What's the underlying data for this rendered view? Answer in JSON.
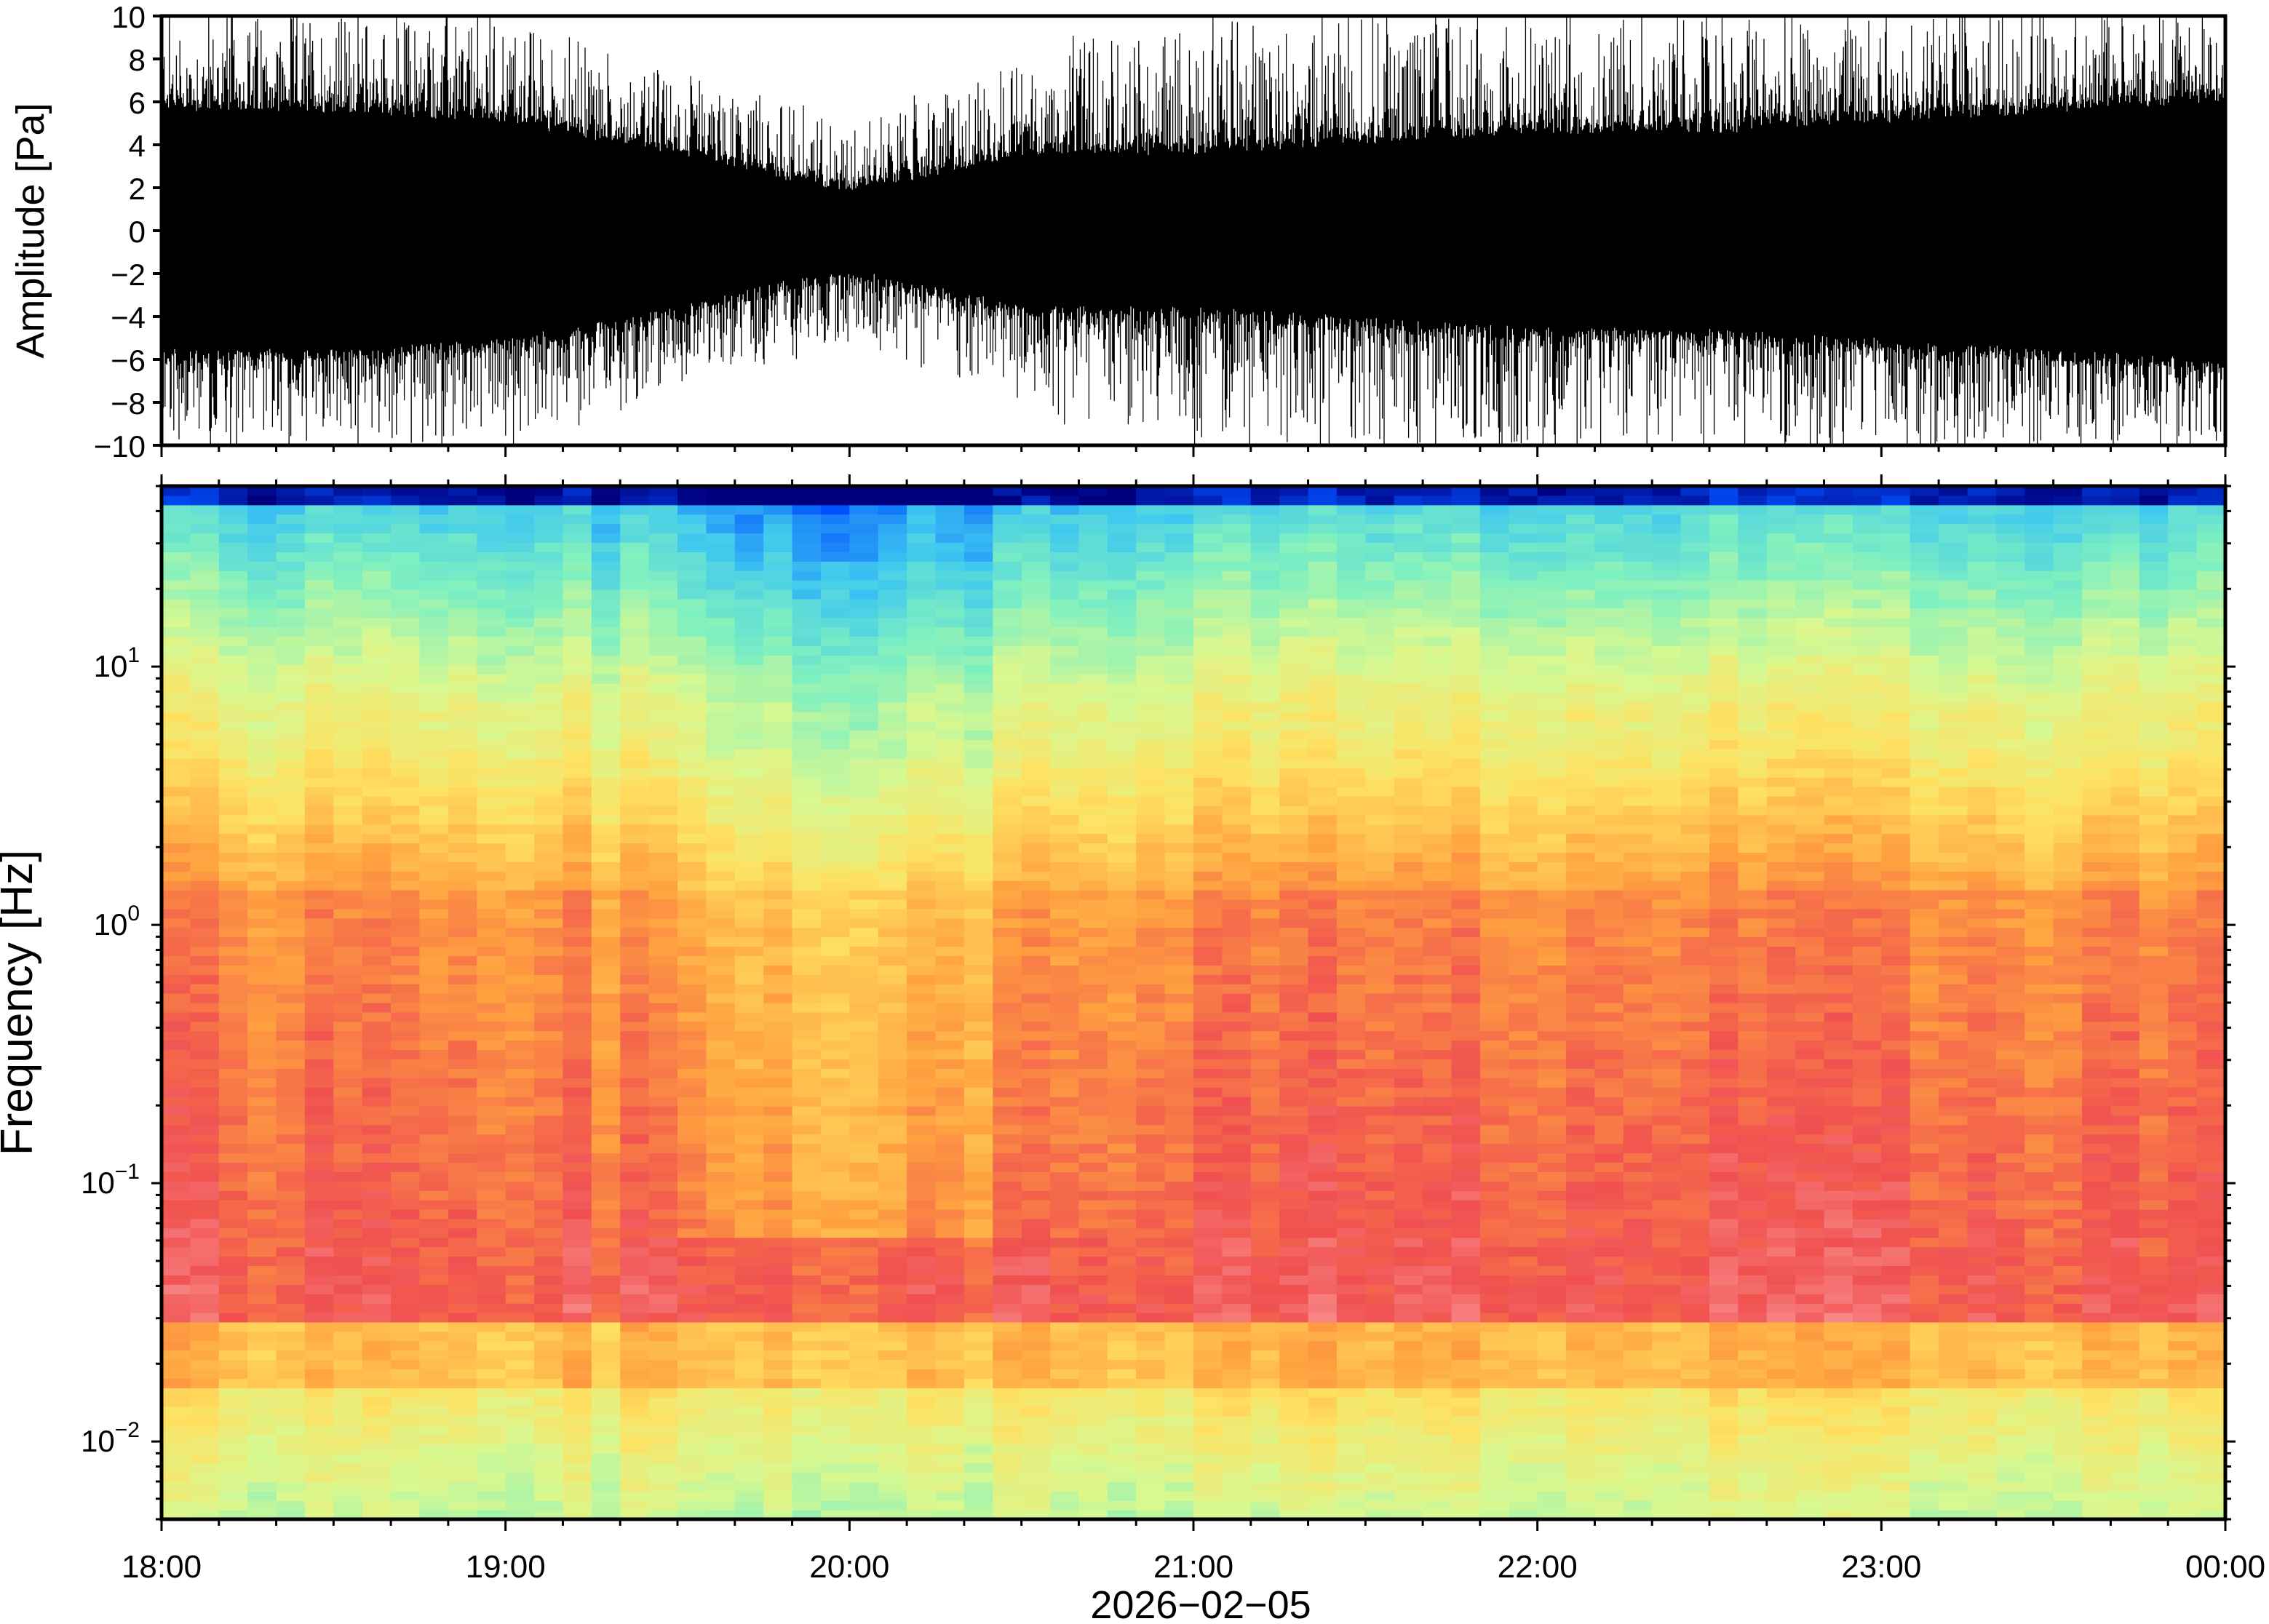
{
  "chart_data": [
    {
      "type": "line",
      "panel": "waveform",
      "title": "",
      "xlabel": "",
      "ylabel": "Amplitude [Pa]",
      "ylim": [
        -10,
        10
      ],
      "yticks": [
        "10",
        "8",
        "6",
        "4",
        "2",
        "0",
        "−2",
        "−4",
        "−6",
        "−8",
        "−10"
      ],
      "yticks_values": [
        10,
        8,
        6,
        4,
        2,
        0,
        -2,
        -4,
        -6,
        -8,
        -10
      ],
      "x_range_hours": [
        18,
        24
      ],
      "envelope": {
        "description_hours": [
          18.0,
          18.5,
          19.0,
          19.5,
          19.75,
          20.0,
          20.25,
          20.5,
          21.0,
          21.5,
          22.0,
          22.5,
          23.0,
          23.5,
          24.0
        ],
        "typical_amplitude": [
          5.5,
          5.5,
          5.0,
          3.5,
          2.5,
          1.8,
          2.5,
          3.5,
          3.5,
          4.0,
          4.5,
          4.5,
          5.0,
          5.5,
          6.0
        ],
        "peak_amplitude": [
          10,
          10,
          10,
          7,
          6,
          5,
          6,
          8,
          10,
          10,
          10,
          10,
          10,
          10,
          10
        ]
      },
      "color": "#000000"
    },
    {
      "type": "heatmap",
      "panel": "spectrogram",
      "title": "",
      "xlabel": "2026−02−05",
      "ylabel": "Frequency [Hz]",
      "yscale": "log",
      "ylim": [
        0.005,
        50
      ],
      "yticks": [
        {
          "base": "10",
          "exp": "1",
          "value": 10
        },
        {
          "base": "10",
          "exp": "0",
          "value": 1
        },
        {
          "base": "10",
          "exp": "−1",
          "value": 0.1
        },
        {
          "base": "10",
          "exp": "−2",
          "value": 0.01
        }
      ],
      "x_ticks": [
        "18:00",
        "19:00",
        "20:00",
        "21:00",
        "22:00",
        "23:00",
        "00:00"
      ],
      "x_ticks_hours": [
        18,
        19,
        20,
        21,
        22,
        23,
        24
      ],
      "colormap": [
        "#00007f",
        "#0050ff",
        "#3ec8f0",
        "#7ff0c0",
        "#d8f890",
        "#ffe060",
        "#ffa040",
        "#f05050",
        "#ffb0b0"
      ],
      "grid": false
    }
  ]
}
